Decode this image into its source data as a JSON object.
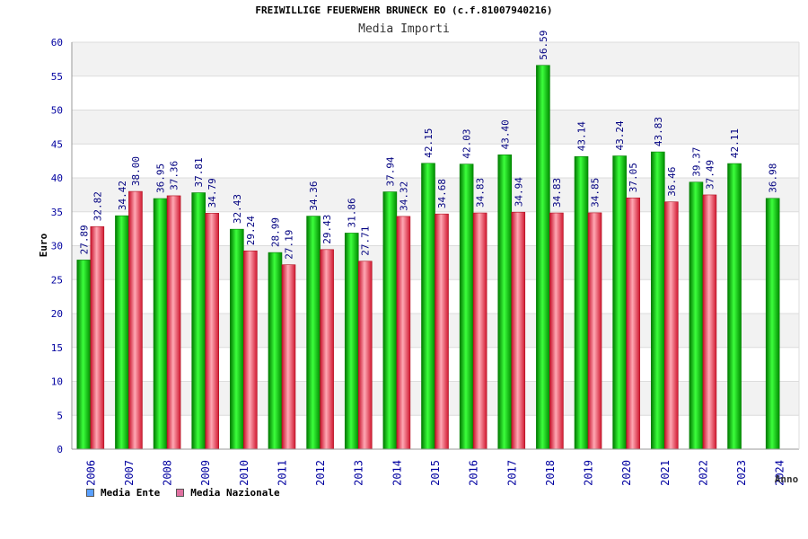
{
  "chart_data": {
    "type": "bar",
    "title": "FREIWILLIGE FEUERWEHR BRUNECK EO (c.f.81007940216)",
    "subtitle": "Media Importi",
    "ylabel": "Euro",
    "xlabel": "Anno",
    "ylim": [
      0,
      60
    ],
    "yticks": [
      0,
      5,
      10,
      15,
      20,
      25,
      30,
      35,
      40,
      45,
      50,
      55,
      60
    ],
    "grid": true,
    "legend_position": "bottom-left",
    "categories": [
      "2006",
      "2007",
      "2008",
      "2009",
      "2010",
      "2011",
      "2012",
      "2013",
      "2014",
      "2015",
      "2016",
      "2017",
      "2018",
      "2019",
      "2020",
      "2021",
      "2022",
      "2023",
      "2024"
    ],
    "series": [
      {
        "name": "Media Ente",
        "color": "#00b400",
        "legend_color": "#5aa0ff",
        "values": [
          27.89,
          34.42,
          36.95,
          37.81,
          32.43,
          28.99,
          34.36,
          31.86,
          37.94,
          42.15,
          42.03,
          43.4,
          56.59,
          43.14,
          43.24,
          43.83,
          39.37,
          42.11,
          36.98
        ],
        "labels": [
          "27.89",
          "34.42",
          "36.95",
          "37.81",
          "32.43",
          "28.99",
          "34.36",
          "31.86",
          "37.94",
          "42.15",
          "42.03",
          "43.40",
          "56.59",
          "43.14",
          "43.24",
          "43.83",
          "39.37",
          "42.11",
          "36.98"
        ]
      },
      {
        "name": "Media Nazionale",
        "color": "#e8303c",
        "legend_color": "#e070a0",
        "values": [
          32.82,
          38.0,
          37.36,
          34.79,
          29.24,
          27.19,
          29.43,
          27.71,
          34.32,
          34.68,
          34.83,
          34.94,
          34.83,
          34.85,
          37.05,
          36.46,
          37.49,
          null,
          null
        ],
        "labels": [
          "32.82",
          "38.00",
          "37.36",
          "34.79",
          "29.24",
          "27.19",
          "29.43",
          "27.71",
          "34.32",
          "34.68",
          "34.83",
          "34.94",
          "34.83",
          "34.85",
          "37.05",
          "36.46",
          "37.49",
          null,
          null
        ]
      }
    ]
  }
}
